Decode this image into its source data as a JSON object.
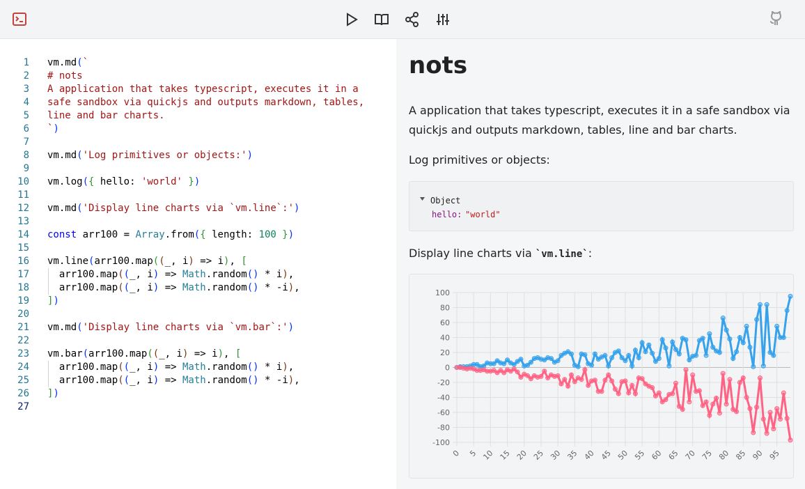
{
  "editor": {
    "lines": [
      {
        "n": 1,
        "text": "vm.md(`"
      },
      {
        "n": 2,
        "text": "# nots"
      },
      {
        "n": 3,
        "text": "A application that takes typescript, executes it in a"
      },
      {
        "n": 4,
        "text": "safe sandbox via quickjs and outputs markdown, tables,"
      },
      {
        "n": 5,
        "text": "line and bar charts."
      },
      {
        "n": 6,
        "text": "`)"
      },
      {
        "n": 7
      },
      {
        "n": 8,
        "text": "vm.md('Log primitives or objects:')"
      },
      {
        "n": 9
      },
      {
        "n": 10,
        "text": "vm.log({ hello: 'world' })"
      },
      {
        "n": 11
      },
      {
        "n": 12,
        "text": "vm.md('Display line charts via `vm.line`:')"
      },
      {
        "n": 13
      },
      {
        "n": 14,
        "text": "const arr100 = Array.from({ length: 100 })"
      },
      {
        "n": 15
      },
      {
        "n": 16,
        "text": "vm.line(arr100.map((_, i) => i), ["
      },
      {
        "n": 17,
        "text": "  arr100.map((_, i) => Math.random() * i),"
      },
      {
        "n": 18,
        "text": "  arr100.map((_, i) => Math.random() * -i),"
      },
      {
        "n": 19,
        "text": "])"
      },
      {
        "n": 20
      },
      {
        "n": 21,
        "text": "vm.md('Display line charts via `vm.bar`:')"
      },
      {
        "n": 22
      },
      {
        "n": 23,
        "text": "vm.bar(arr100.map((_, i) => i), ["
      },
      {
        "n": 24,
        "text": "  arr100.map((_, i) => Math.random() * i),"
      },
      {
        "n": 25,
        "text": "  arr100.map((_, i) => Math.random() * -i),"
      },
      {
        "n": 26,
        "text": "])"
      },
      {
        "n": 27
      }
    ]
  },
  "preview": {
    "title": "nots",
    "paragraph": "A application that takes typescript, executes it in a safe sandbox via quickjs and outputs markdown, tables, line and bar charts.",
    "log_heading": "Log primitives or objects:",
    "object": {
      "label": "Object",
      "key": "hello:",
      "value": "\"world\""
    },
    "line_heading": {
      "before": "Display line charts via ",
      "code": "`vm.line`",
      "after": ":"
    }
  },
  "chart_data": {
    "type": "line",
    "grid": true,
    "x": [
      0,
      1,
      2,
      3,
      4,
      5,
      6,
      7,
      8,
      9,
      10,
      11,
      12,
      13,
      14,
      15,
      16,
      17,
      18,
      19,
      20,
      21,
      22,
      23,
      24,
      25,
      26,
      27,
      28,
      29,
      30,
      31,
      32,
      33,
      34,
      35,
      36,
      37,
      38,
      39,
      40,
      41,
      42,
      43,
      44,
      45,
      46,
      47,
      48,
      49,
      50,
      51,
      52,
      53,
      54,
      55,
      56,
      57,
      58,
      59,
      60,
      61,
      62,
      63,
      64,
      65,
      66,
      67,
      68,
      69,
      70,
      71,
      72,
      73,
      74,
      75,
      76,
      77,
      78,
      79,
      80,
      81,
      82,
      83,
      84,
      85,
      86,
      87,
      88,
      89,
      90,
      91,
      92,
      93,
      94,
      95,
      96,
      97,
      98,
      99
    ],
    "xlim": [
      0,
      99
    ],
    "xticks": [
      0,
      5,
      10,
      15,
      20,
      25,
      30,
      35,
      40,
      45,
      50,
      55,
      60,
      65,
      70,
      75,
      80,
      85,
      90,
      95
    ],
    "ylim": [
      -100,
      100
    ],
    "yticks": [
      -100,
      -80,
      -60,
      -40,
      -20,
      0,
      20,
      40,
      60,
      80,
      100
    ],
    "series": [
      {
        "color": "#36a2eb",
        "values": [
          0,
          1,
          1,
          1,
          2,
          4,
          4,
          1,
          2,
          6,
          5,
          5,
          9,
          6,
          5,
          10,
          6,
          4,
          8,
          11,
          2,
          3,
          7,
          12,
          13,
          11,
          10,
          13,
          12,
          7,
          9,
          16,
          19,
          21,
          18,
          3,
          1,
          18,
          17,
          5,
          3,
          18,
          11,
          14,
          16,
          2,
          13,
          20,
          22,
          13,
          9,
          16,
          2,
          23,
          13,
          33,
          21,
          30,
          19,
          8,
          12,
          37,
          26,
          2,
          34,
          24,
          18,
          39,
          37,
          10,
          15,
          16,
          36,
          39,
          16,
          45,
          27,
          22,
          20,
          66,
          50,
          38,
          12,
          21,
          40,
          33,
          55,
          27,
          1,
          64,
          84,
          2,
          84,
          20,
          16,
          55,
          40,
          40,
          76,
          95
        ]
      },
      {
        "color": "#ff6384",
        "values": [
          0,
          0,
          -1,
          -2,
          -1,
          -2,
          -4,
          -4,
          -3,
          -5,
          -5,
          -4,
          -7,
          -4,
          -7,
          -3,
          -5,
          -2,
          -6,
          -13,
          -9,
          -11,
          -15,
          -11,
          -13,
          -12,
          -5,
          -14,
          -10,
          -12,
          -11,
          -22,
          -16,
          -25,
          -10,
          -19,
          -14,
          -16,
          -3,
          -24,
          -18,
          -17,
          -32,
          -32,
          -17,
          -10,
          -18,
          -29,
          -35,
          -19,
          -18,
          -34,
          -24,
          -35,
          -14,
          -15,
          -22,
          -25,
          -27,
          -38,
          -34,
          -46,
          -43,
          -36,
          -35,
          -21,
          -52,
          -56,
          -3,
          -46,
          -10,
          -32,
          -31,
          -51,
          -46,
          -64,
          -49,
          -41,
          -61,
          -8,
          -49,
          -16,
          -56,
          -59,
          -20,
          -14,
          -40,
          -55,
          -87,
          -53,
          -14,
          -69,
          -88,
          -60,
          -82,
          -55,
          -69,
          -34,
          -68,
          -97
        ]
      }
    ]
  }
}
